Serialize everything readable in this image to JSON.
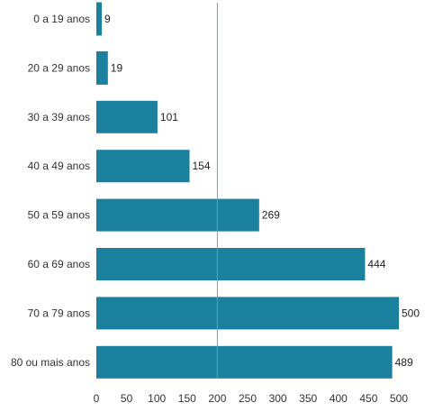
{
  "chart_data": {
    "type": "bar",
    "orientation": "horizontal",
    "categories": [
      "0 a 19 anos",
      "20 a 29 anos",
      "30 a 39 anos",
      "40 a 49 anos",
      "50 a 59 anos",
      "60 a 69 anos",
      "70 a 79 anos",
      "80 ou mais anos"
    ],
    "values": [
      9,
      19,
      101,
      154,
      269,
      444,
      500,
      489
    ],
    "value_labels": [
      "9",
      "19",
      "101",
      "154",
      "269",
      "444",
      "500",
      "489"
    ],
    "xticks": [
      "0",
      "50",
      "100",
      "150",
      "200",
      "250",
      "300",
      "350",
      "400",
      "450",
      "500"
    ],
    "xlim": [
      0,
      500
    ],
    "title": "",
    "xlabel": "",
    "ylabel": "",
    "grid": "vertical line at 200",
    "legend": "none",
    "colors": {
      "bar": "#1b7f9e",
      "gridline": "#5aa7c0"
    }
  }
}
